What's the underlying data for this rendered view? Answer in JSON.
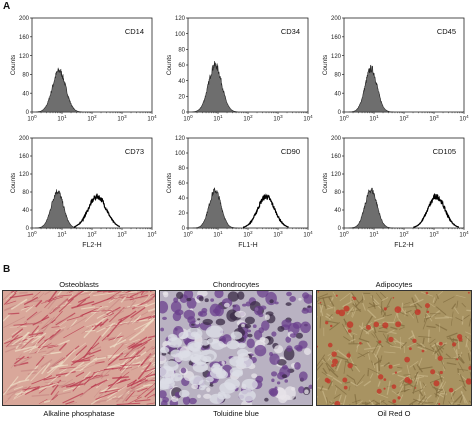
{
  "panel_a_label": "A",
  "panel_b_label": "B",
  "chart_data": [
    {
      "type": "area",
      "title": "",
      "marker": "CD14",
      "xlabel": "",
      "ylabel": "Counts",
      "xscale": "log",
      "xlim": [
        1,
        10000
      ],
      "ylim": [
        0,
        200
      ],
      "yticks": [
        "0",
        "40",
        "80",
        "120",
        "160",
        "200"
      ],
      "xticks": [
        "10^0",
        "10^1",
        "10^2",
        "10^3",
        "10^4"
      ],
      "series": [
        {
          "kind": "filled",
          "peak_x": 8,
          "peak_y": 88,
          "width": 0.22
        }
      ]
    },
    {
      "type": "area",
      "title": "",
      "marker": "CD34",
      "xlabel": "",
      "ylabel": "Counts",
      "xscale": "log",
      "xlim": [
        1,
        10000
      ],
      "ylim": [
        0,
        120
      ],
      "yticks": [
        "0",
        "20",
        "40",
        "60",
        "80",
        "100",
        "120"
      ],
      "xticks": [
        "10^0",
        "10^1",
        "10^2",
        "10^3",
        "10^4"
      ],
      "series": [
        {
          "kind": "filled",
          "peak_x": 8,
          "peak_y": 60,
          "width": 0.22
        }
      ]
    },
    {
      "type": "area",
      "title": "",
      "marker": "CD45",
      "xlabel": "",
      "ylabel": "Counts",
      "xscale": "log",
      "xlim": [
        1,
        10000
      ],
      "ylim": [
        0,
        200
      ],
      "yticks": [
        "0",
        "40",
        "80",
        "120",
        "160",
        "200"
      ],
      "xticks": [
        "10^0",
        "10^1",
        "10^2",
        "10^3",
        "10^4"
      ],
      "series": [
        {
          "kind": "filled",
          "peak_x": 8,
          "peak_y": 92,
          "width": 0.2
        }
      ]
    },
    {
      "type": "area",
      "title": "",
      "marker": "CD73",
      "xlabel": "FL2-H",
      "ylabel": "Counts",
      "xscale": "log",
      "xlim": [
        1,
        10000
      ],
      "ylim": [
        0,
        200
      ],
      "yticks": [
        "0",
        "40",
        "80",
        "120",
        "160",
        "200"
      ],
      "xticks": [
        "10^0",
        "10^1",
        "10^2",
        "10^3",
        "10^4"
      ],
      "series": [
        {
          "kind": "filled",
          "peak_x": 7,
          "peak_y": 82,
          "width": 0.2
        },
        {
          "kind": "outline",
          "peak_x": 150,
          "peak_y": 70,
          "width": 0.3
        }
      ]
    },
    {
      "type": "area",
      "title": "",
      "marker": "CD90",
      "xlabel": "FL1-H",
      "ylabel": "Counts",
      "xscale": "log",
      "xlim": [
        1,
        10000
      ],
      "ylim": [
        0,
        120
      ],
      "yticks": [
        "0",
        "20",
        "40",
        "60",
        "80",
        "100",
        "120"
      ],
      "xticks": [
        "10^0",
        "10^1",
        "10^2",
        "10^3",
        "10^4"
      ],
      "series": [
        {
          "kind": "filled",
          "peak_x": 8,
          "peak_y": 50,
          "width": 0.2
        },
        {
          "kind": "outline",
          "peak_x": 400,
          "peak_y": 42,
          "width": 0.28
        }
      ]
    },
    {
      "type": "area",
      "title": "",
      "marker": "CD105",
      "xlabel": "FL2-H",
      "ylabel": "Counts",
      "xscale": "log",
      "xlim": [
        1,
        10000
      ],
      "ylim": [
        0,
        200
      ],
      "yticks": [
        "0",
        "40",
        "80",
        "120",
        "160",
        "200"
      ],
      "xticks": [
        "10^0",
        "10^1",
        "10^2",
        "10^3",
        "10^4"
      ],
      "series": [
        {
          "kind": "filled",
          "peak_x": 8,
          "peak_y": 85,
          "width": 0.2
        },
        {
          "kind": "outline",
          "peak_x": 1200,
          "peak_y": 70,
          "width": 0.28
        }
      ]
    }
  ],
  "images": [
    {
      "top_label": "Osteoblasts",
      "bottom_label": "Alkaline phosphatase",
      "base": "#d9a79a",
      "stain": "#b8324a",
      "fiber": "#efe0c8"
    },
    {
      "top_label": "Chondrocytes",
      "bottom_label": "Toluidine blue",
      "base": "#b9b2c2",
      "stain": "#6b3f8c",
      "fiber": "#e8e4ea"
    },
    {
      "top_label": "Adipocytes",
      "bottom_label": "Oil Red O",
      "base": "#a89362",
      "stain": "#c23a2c",
      "fiber": "#c9b78a"
    }
  ]
}
